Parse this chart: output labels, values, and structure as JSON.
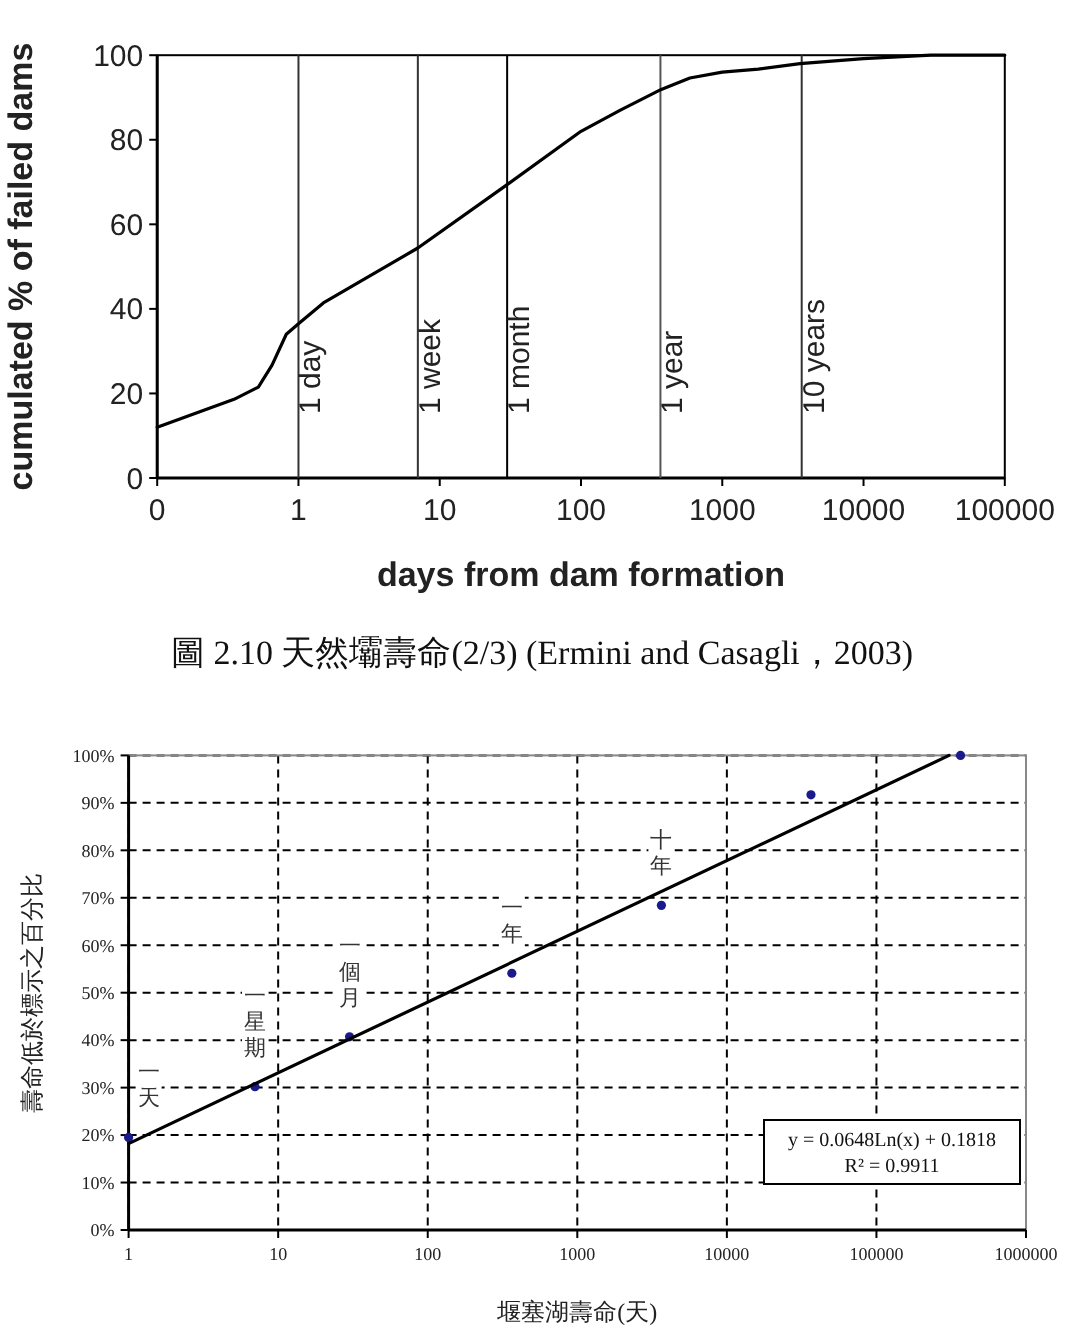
{
  "chart_data": [
    {
      "type": "line",
      "xlabel": "days from dam formation",
      "ylabel": "cumulated % of failed dams",
      "log": "x",
      "xlim": [
        0.1,
        100000
      ],
      "xticks": [
        {
          "value": 0.1,
          "label": "0"
        },
        1,
        10,
        100,
        1000,
        10000,
        100000
      ],
      "ylim": [
        0,
        100
      ],
      "yticks": [
        0,
        20,
        40,
        60,
        80,
        100
      ],
      "grid": false,
      "x": [
        0.1,
        0.35,
        0.52,
        0.65,
        0.82,
        1,
        1.5,
        7,
        30,
        100,
        190,
        370,
        590,
        1000,
        1800,
        3550,
        10000,
        30000,
        100000
      ],
      "series": [
        {
          "color": "#000000",
          "values": [
            12,
            18.6,
            21.5,
            26.7,
            34,
            36.5,
            41.4,
            54.4,
            69.4,
            82,
            87,
            91.9,
            94.6,
            96,
            96.7,
            98,
            99.2,
            100,
            100
          ]
        }
      ],
      "ref_lines": [
        {
          "axis": "x",
          "value": 1,
          "label": "1 day",
          "color": "#333333"
        },
        {
          "axis": "x",
          "value": 7,
          "label": "1 week",
          "color": "#333333"
        },
        {
          "axis": "x",
          "value": 30,
          "label": "1 month",
          "color": "#000000"
        },
        {
          "axis": "x",
          "value": 365,
          "label": "1 year",
          "color": "#555555"
        },
        {
          "axis": "x",
          "value": 3650,
          "label": "10 years",
          "color": "#333333"
        }
      ],
      "annotations": [
        "圖 2.10 天然壩壽命(2/3) (Ermini and Casagli，2003)"
      ]
    },
    {
      "type": "scatter",
      "xlabel": "堰塞湖壽命(天)",
      "ylabel": "壽命低於標示之百分比",
      "log": "x",
      "xlim": [
        1,
        1000000
      ],
      "xticks": [
        1,
        10,
        100,
        1000,
        10000,
        100000,
        1000000
      ],
      "ylim": [
        0,
        100
      ],
      "yticks": [
        {
          "value": 0,
          "label": "0%"
        },
        {
          "value": 10,
          "label": "10%"
        },
        {
          "value": 20,
          "label": "20%"
        },
        {
          "value": 30,
          "label": "30%"
        },
        {
          "value": 40,
          "label": "40%"
        },
        {
          "value": 50,
          "label": "50%"
        },
        {
          "value": 60,
          "label": "60%"
        },
        {
          "value": 70,
          "label": "70%"
        },
        {
          "value": 80,
          "label": "80%"
        },
        {
          "value": 90,
          "label": "90%"
        },
        {
          "value": 100,
          "label": "100%"
        }
      ],
      "grid": true,
      "x": [
        1,
        7,
        30,
        365,
        3650,
        36500,
        365000
      ],
      "series": [
        {
          "color": "#1a1a8c",
          "marker": "circle",
          "values": [
            19.5,
            30.2,
            40.7,
            54.1,
            68.4,
            91.7,
            100
          ]
        },
        {
          "type": "line",
          "color": "#000000",
          "x": [
            1,
            306000
          ],
          "values": [
            18.2,
            100
          ]
        }
      ],
      "annotations": [
        {
          "text": "一天",
          "x": 1,
          "y": 19.5
        },
        {
          "text": "一星期",
          "x": 7,
          "y": 30.2
        },
        {
          "text": "一個月",
          "x": 30,
          "y": 40.7
        },
        {
          "text": "一年",
          "x": 365,
          "y": 54.1
        },
        {
          "text": "十年",
          "x": 3650,
          "y": 68.4
        },
        "y = 0.0648Ln(x) + 0.1818",
        "R² = 0.9911"
      ]
    }
  ]
}
